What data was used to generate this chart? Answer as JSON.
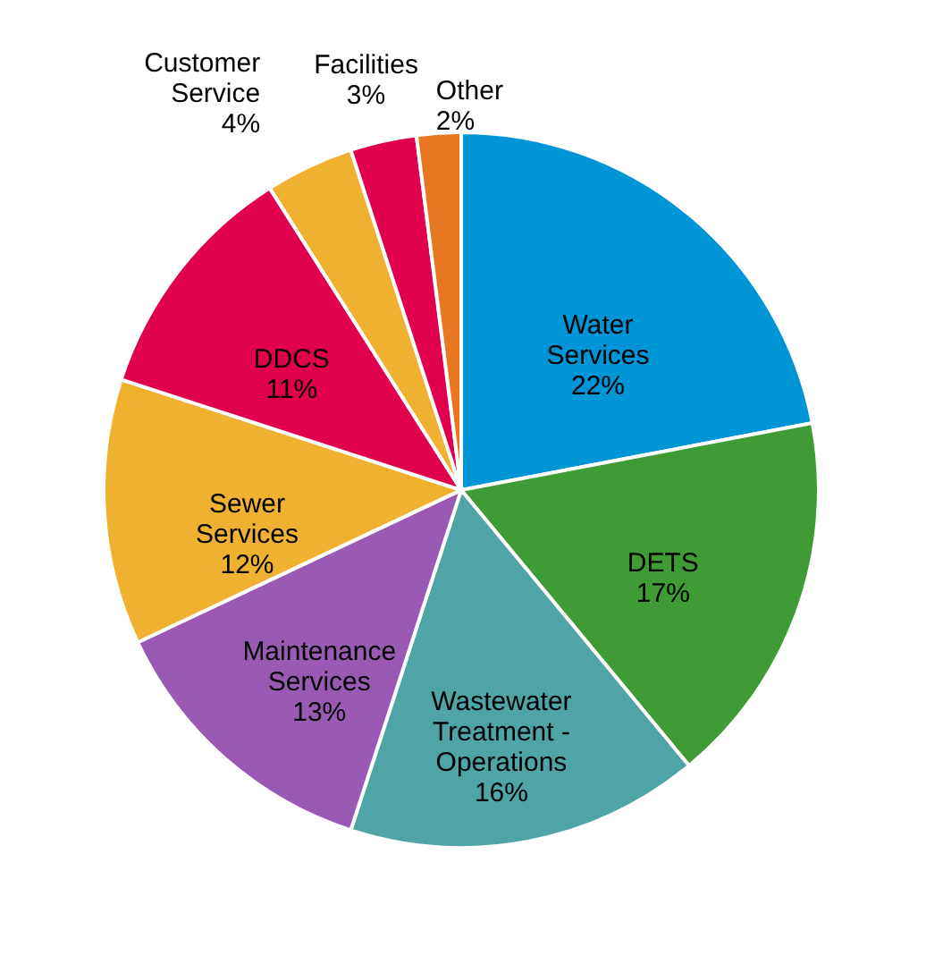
{
  "chart_data": {
    "type": "pie",
    "categories": [
      "Water Services",
      "DETS",
      "Wastewater Treatment - Operations",
      "Maintenance Services",
      "Sewer Services",
      "DDCS",
      "Customer Service",
      "Facilities",
      "Other"
    ],
    "values": [
      22,
      17,
      16,
      13,
      12,
      11,
      4,
      3,
      2
    ],
    "value_labels": [
      "22%",
      "17%",
      "16%",
      "13%",
      "12%",
      "11%",
      "4%",
      "3%",
      "2%"
    ],
    "colors": [
      "#0096d6",
      "#3f9c35",
      "#4fa5a5",
      "#9b59b6",
      "#f0b030",
      "#e0004d",
      "#f0b030",
      "#e0004d",
      "#e87722"
    ]
  }
}
